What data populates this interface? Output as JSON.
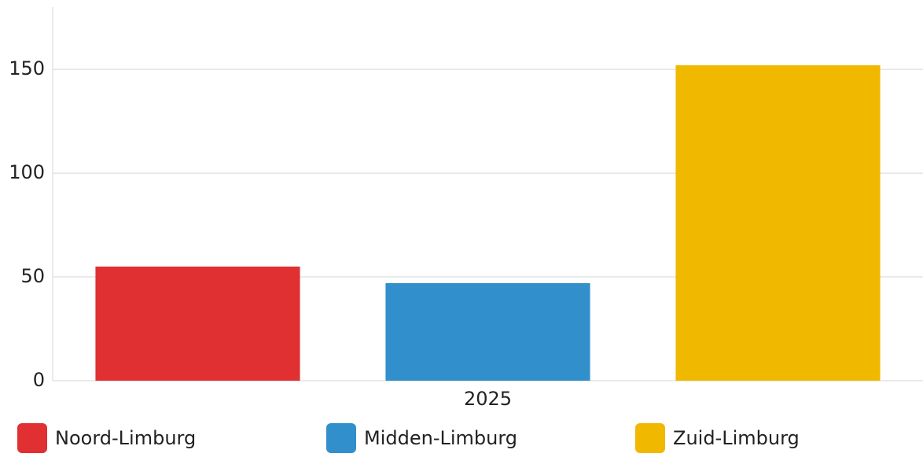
{
  "chart_data": {
    "type": "bar",
    "categories": [
      "2025"
    ],
    "series": [
      {
        "name": "Noord-Limburg",
        "color": "#e03032",
        "values": [
          55
        ]
      },
      {
        "name": "Midden-Limburg",
        "color": "#318fcc",
        "values": [
          47
        ]
      },
      {
        "name": "Zuid-Limburg",
        "color": "#f1b800",
        "values": [
          152
        ]
      }
    ],
    "ylim": [
      0,
      180
    ],
    "yticks": [
      0,
      50,
      100,
      150
    ],
    "grid": true,
    "legend": "bottom"
  }
}
